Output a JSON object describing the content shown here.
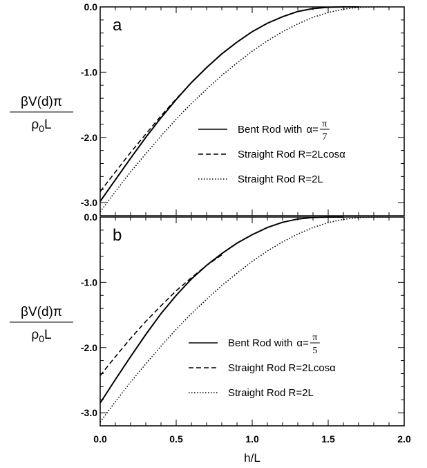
{
  "chart_data": [
    {
      "type": "line",
      "panel": "a",
      "alpha_label": "α=",
      "alpha_num": "π",
      "alpha_den": "7",
      "xlabel": "",
      "ylabel_num": "βV(d)π",
      "ylabel_den_base": "ρ",
      "ylabel_den_sub": "0",
      "ylabel_den_tail": "L",
      "xlim": [
        0.0,
        2.0
      ],
      "ylim": [
        -3.2,
        0.0
      ],
      "xticks": [
        "0.0",
        "0.5",
        "1.0",
        "1.5",
        "2.0"
      ],
      "yticks": [
        "0.0",
        "-1.0",
        "-2.0",
        "-3.0"
      ],
      "legend_position": "center-right",
      "series": [
        {
          "name": "Bent Rod with",
          "style": "solid",
          "x": [
            0.0,
            0.1,
            0.2,
            0.3,
            0.4,
            0.5,
            0.6,
            0.7,
            0.8,
            0.9,
            1.0,
            1.1,
            1.2,
            1.3,
            1.4,
            1.5,
            1.6,
            1.7
          ],
          "y": [
            -2.98,
            -2.65,
            -2.32,
            -2.0,
            -1.7,
            -1.42,
            -1.16,
            -0.93,
            -0.72,
            -0.54,
            -0.38,
            -0.25,
            -0.15,
            -0.07,
            -0.025,
            -0.005,
            0.0,
            0.0
          ]
        },
        {
          "name": "Straight Rod R=2Lcosα",
          "style": "dashed",
          "x": [
            0.0,
            0.1,
            0.2,
            0.3,
            0.4,
            0.5,
            0.6
          ],
          "y": [
            -2.83,
            -2.53,
            -2.23,
            -1.95,
            -1.67,
            -1.41,
            -1.16
          ]
        },
        {
          "name": "Straight Rod R=2L",
          "style": "dotted",
          "x": [
            0.0,
            0.1,
            0.2,
            0.3,
            0.4,
            0.5,
            0.6,
            0.7,
            0.8,
            0.9,
            1.0,
            1.1,
            1.2,
            1.3,
            1.4,
            1.5,
            1.6,
            1.7,
            1.8,
            1.9
          ],
          "y": [
            -3.14,
            -2.83,
            -2.53,
            -2.25,
            -1.98,
            -1.72,
            -1.48,
            -1.26,
            -1.05,
            -0.86,
            -0.68,
            -0.52,
            -0.38,
            -0.26,
            -0.16,
            -0.085,
            -0.035,
            -0.008,
            0.0,
            0.0
          ]
        }
      ]
    },
    {
      "type": "line",
      "panel": "b",
      "alpha_label": "α=",
      "alpha_num": "π",
      "alpha_den": "5",
      "xlabel": "h/L",
      "ylabel_num": "βV(d)π",
      "ylabel_den_base": "ρ",
      "ylabel_den_sub": "0",
      "ylabel_den_tail": "L",
      "xlim": [
        0.0,
        2.0
      ],
      "ylim": [
        -3.2,
        0.0
      ],
      "xticks": [
        "0.0",
        "0.5",
        "1.0",
        "1.5",
        "2.0"
      ],
      "yticks": [
        "0.0",
        "-1.0",
        "-2.0",
        "-3.0"
      ],
      "legend_position": "lower-right",
      "series": [
        {
          "name": "Bent Rod with",
          "style": "solid",
          "x": [
            0.0,
            0.1,
            0.2,
            0.3,
            0.4,
            0.5,
            0.6,
            0.7,
            0.8,
            0.9,
            1.0,
            1.1,
            1.2,
            1.3,
            1.4,
            1.5,
            1.6
          ],
          "y": [
            -2.85,
            -2.49,
            -2.14,
            -1.8,
            -1.48,
            -1.2,
            -0.95,
            -0.74,
            -0.56,
            -0.4,
            -0.27,
            -0.16,
            -0.08,
            -0.03,
            -0.005,
            0.0,
            0.0
          ]
        },
        {
          "name": "Straight Rod R=2Lcosα",
          "style": "dashed",
          "x": [
            0.0,
            0.1,
            0.2,
            0.3,
            0.4,
            0.5,
            0.6,
            0.7,
            0.8
          ],
          "y": [
            -2.43,
            -2.14,
            -1.86,
            -1.6,
            -1.36,
            -1.13,
            -0.93,
            -0.74,
            -0.58
          ]
        },
        {
          "name": "Straight Rod R=2L",
          "style": "dotted",
          "x": [
            0.0,
            0.1,
            0.2,
            0.3,
            0.4,
            0.5,
            0.6,
            0.7,
            0.8,
            0.9,
            1.0,
            1.1,
            1.2,
            1.3,
            1.4,
            1.5,
            1.6,
            1.7,
            1.8,
            1.9
          ],
          "y": [
            -3.14,
            -2.83,
            -2.53,
            -2.25,
            -1.98,
            -1.72,
            -1.48,
            -1.26,
            -1.05,
            -0.86,
            -0.68,
            -0.52,
            -0.38,
            -0.26,
            -0.16,
            -0.085,
            -0.035,
            -0.008,
            0.0,
            0.0
          ]
        }
      ]
    }
  ]
}
